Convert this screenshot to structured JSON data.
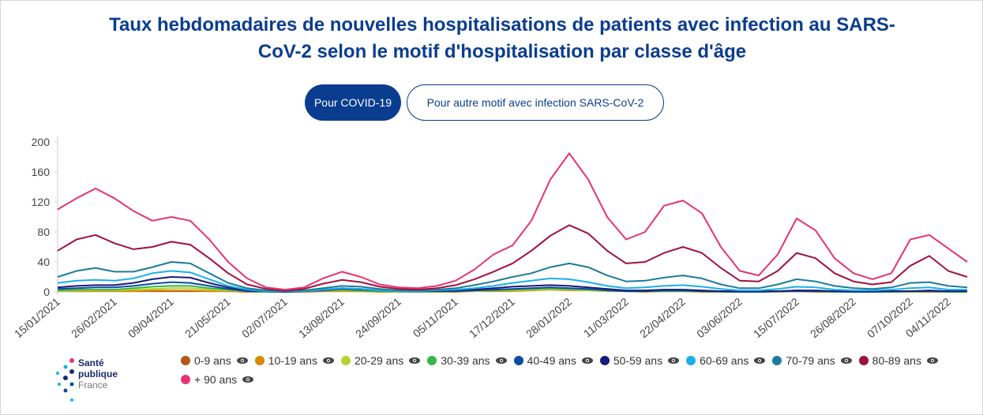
{
  "header": {
    "buttons": [
      "Pour COVID-19",
      "Pour autre motif avec infection SARS-CoV-2"
    ]
  },
  "logo": {
    "lines": [
      "Santé",
      "publique",
      "France"
    ]
  },
  "chart_data": {
    "type": "line",
    "title": "Taux hebdomadaires de nouvelles hospitalisations de patients avec infection au SARS-CoV-2 selon le motif d'hospitalisation par classe d'âge",
    "categories": [
      "15/01/2021",
      null,
      null,
      "26/02/2021",
      null,
      null,
      "09/04/2021",
      null,
      null,
      "21/05/2021",
      null,
      null,
      "02/07/2021",
      null,
      null,
      "13/08/2021",
      null,
      null,
      "24/09/2021",
      null,
      null,
      "05/11/2021",
      null,
      null,
      "17/12/2021",
      null,
      null,
      "28/01/2022",
      null,
      null,
      "11/03/2022",
      null,
      null,
      "22/04/2022",
      null,
      null,
      "03/06/2022",
      null,
      null,
      "15/07/2022",
      null,
      null,
      "26/08/2022",
      null,
      null,
      "07/10/2022",
      null,
      "04/11/2022",
      null
    ],
    "ylim": [
      0,
      200
    ],
    "yticks": [
      0,
      40,
      80,
      120,
      160,
      200
    ],
    "grid": false,
    "series": [
      {
        "name": "0-9 ans",
        "color": "#b5571b",
        "values": [
          1,
          1,
          1,
          1,
          1,
          1,
          1,
          1,
          1,
          1,
          0,
          0,
          0,
          0,
          1,
          1,
          1,
          1,
          1,
          1,
          1,
          1,
          1,
          2,
          2,
          3,
          4,
          4,
          3,
          2,
          1,
          1,
          1,
          1,
          1,
          1,
          1,
          1,
          1,
          2,
          1,
          1,
          1,
          1,
          1,
          1,
          1,
          1,
          1
        ]
      },
      {
        "name": "10-19 ans",
        "color": "#d98a00",
        "values": [
          1,
          1,
          1,
          1,
          1,
          2,
          2,
          2,
          1,
          1,
          0,
          0,
          0,
          0,
          1,
          1,
          1,
          0,
          0,
          0,
          0,
          0,
          1,
          1,
          1,
          2,
          3,
          2,
          2,
          1,
          1,
          0,
          1,
          1,
          0,
          0,
          0,
          0,
          0,
          1,
          0,
          0,
          0,
          0,
          0,
          0,
          0,
          0,
          0
        ]
      },
      {
        "name": "20-29 ans",
        "color": "#b5d334",
        "values": [
          1,
          2,
          2,
          2,
          3,
          4,
          5,
          5,
          3,
          2,
          1,
          0,
          0,
          1,
          2,
          2,
          2,
          1,
          0,
          0,
          0,
          1,
          1,
          2,
          2,
          3,
          4,
          3,
          2,
          1,
          1,
          1,
          1,
          1,
          1,
          0,
          0,
          0,
          0,
          1,
          1,
          0,
          0,
          0,
          0,
          0,
          1,
          0,
          0
        ]
      },
      {
        "name": "30-39 ans",
        "color": "#3bb54a",
        "values": [
          2,
          3,
          3,
          3,
          5,
          7,
          8,
          8,
          5,
          3,
          1,
          0,
          0,
          1,
          2,
          3,
          2,
          1,
          1,
          0,
          1,
          1,
          2,
          2,
          3,
          4,
          5,
          4,
          3,
          2,
          1,
          1,
          1,
          1,
          1,
          0,
          0,
          0,
          1,
          1,
          1,
          0,
          0,
          0,
          0,
          1,
          1,
          0,
          0
        ]
      },
      {
        "name": "40-49 ans",
        "color": "#0b4ea2",
        "values": [
          4,
          5,
          6,
          6,
          8,
          11,
          13,
          12,
          8,
          4,
          1,
          1,
          0,
          1,
          2,
          4,
          3,
          2,
          1,
          1,
          1,
          1,
          2,
          3,
          4,
          5,
          6,
          5,
          4,
          2,
          1,
          1,
          2,
          2,
          1,
          1,
          0,
          0,
          1,
          1,
          1,
          1,
          0,
          0,
          1,
          1,
          1,
          1,
          1
        ]
      },
      {
        "name": "50-59 ans",
        "color": "#1a1a7a",
        "values": [
          6,
          8,
          9,
          9,
          12,
          17,
          20,
          19,
          12,
          6,
          2,
          1,
          0.5,
          1,
          3,
          5,
          4,
          2,
          1,
          1,
          1,
          2,
          3,
          5,
          7,
          8,
          9,
          8,
          6,
          4,
          2,
          2,
          3,
          3,
          2,
          1,
          1,
          1,
          1,
          2,
          2,
          1,
          1,
          1,
          1,
          1,
          2,
          1,
          1
        ]
      },
      {
        "name": "60-69 ans",
        "color": "#1ab0e8",
        "values": [
          12,
          15,
          16,
          15,
          18,
          25,
          28,
          26,
          17,
          8,
          3,
          1,
          1,
          1,
          3,
          5,
          4,
          2,
          1,
          1,
          2,
          3,
          5,
          8,
          12,
          15,
          18,
          17,
          13,
          8,
          5,
          6,
          8,
          9,
          7,
          4,
          2,
          2,
          4,
          7,
          6,
          3,
          2,
          2,
          3,
          5,
          6,
          3,
          3
        ]
      },
      {
        "name": "70-79 ans",
        "color": "#1c7b9b",
        "values": [
          20,
          28,
          32,
          27,
          27,
          33,
          40,
          38,
          25,
          12,
          5,
          2,
          1,
          2,
          5,
          8,
          7,
          4,
          2,
          2,
          3,
          5,
          9,
          14,
          20,
          25,
          33,
          38,
          33,
          22,
          14,
          15,
          19,
          22,
          18,
          10,
          5,
          5,
          10,
          17,
          14,
          8,
          5,
          4,
          6,
          12,
          13,
          8,
          6
        ]
      },
      {
        "name": "80-89 ans",
        "color": "#a0103f",
        "values": [
          55,
          70,
          76,
          65,
          57,
          60,
          67,
          63,
          45,
          25,
          10,
          4,
          2,
          4,
          11,
          16,
          13,
          7,
          4,
          3,
          5,
          9,
          17,
          27,
          38,
          55,
          75,
          89,
          78,
          55,
          38,
          40,
          52,
          60,
          52,
          32,
          15,
          14,
          28,
          52,
          45,
          25,
          14,
          10,
          13,
          35,
          48,
          28,
          20
        ]
      },
      {
        "name": "+ 90 ans",
        "color": "#e8326f",
        "values": [
          110,
          125,
          138,
          125,
          108,
          95,
          100,
          95,
          70,
          40,
          18,
          6,
          3,
          6,
          18,
          27,
          20,
          10,
          6,
          5,
          8,
          15,
          30,
          50,
          62,
          95,
          150,
          185,
          150,
          100,
          70,
          80,
          115,
          122,
          105,
          60,
          28,
          22,
          50,
          98,
          82,
          45,
          25,
          17,
          25,
          70,
          76,
          58,
          40
        ]
      }
    ]
  }
}
